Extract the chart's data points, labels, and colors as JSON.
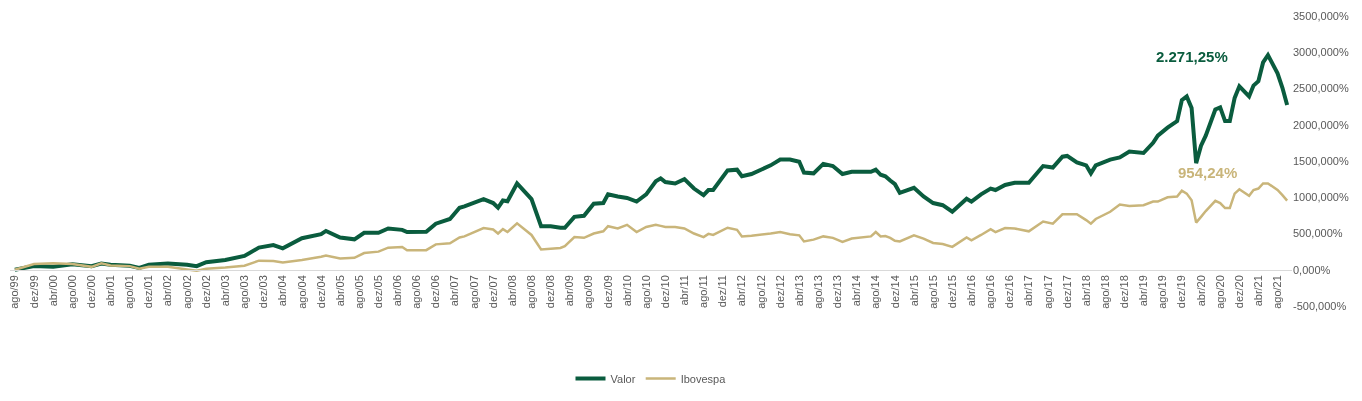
{
  "chart_data": {
    "type": "line",
    "x": [
      "1999-08",
      "1999-12",
      "2000-04",
      "2000-08",
      "2000-12",
      "2001-02",
      "2001-04",
      "2001-08",
      "2001-10",
      "2001-12",
      "2002-04",
      "2002-08",
      "2002-10",
      "2002-12",
      "2003-04",
      "2003-08",
      "2003-11",
      "2004-02",
      "2004-04",
      "2004-08",
      "2004-12",
      "2005-01",
      "2005-04",
      "2005-07",
      "2005-09",
      "2005-12",
      "2006-02",
      "2006-05",
      "2006-06",
      "2006-10",
      "2006-12",
      "2007-03",
      "2007-05",
      "2007-06",
      "2007-10",
      "2007-12",
      "2008-01",
      "2008-02",
      "2008-03",
      "2008-05",
      "2008-08",
      "2008-10",
      "2008-12",
      "2009-02",
      "2009-03",
      "2009-05",
      "2009-07",
      "2009-09",
      "2009-11",
      "2009-12",
      "2010-02",
      "2010-04",
      "2010-06",
      "2010-08",
      "2010-10",
      "2010-11",
      "2010-12",
      "2011-02",
      "2011-04",
      "2011-06",
      "2011-08",
      "2011-09",
      "2011-10",
      "2012-01",
      "2012-03",
      "2012-04",
      "2012-06",
      "2012-10",
      "2012-12",
      "2013-02",
      "2013-04",
      "2013-05",
      "2013-07",
      "2013-09",
      "2013-11",
      "2014-01",
      "2014-03",
      "2014-07",
      "2014-08",
      "2014-09",
      "2014-10",
      "2014-11",
      "2014-12",
      "2015-01",
      "2015-04",
      "2015-06",
      "2015-08",
      "2015-10",
      "2015-12",
      "2016-03",
      "2016-04",
      "2016-06",
      "2016-08",
      "2016-09",
      "2016-11",
      "2017-01",
      "2017-04",
      "2017-07",
      "2017-09",
      "2017-11",
      "2017-12",
      "2018-02",
      "2018-04",
      "2018-05",
      "2018-06",
      "2018-09",
      "2018-11",
      "2019-01",
      "2019-04",
      "2019-06",
      "2019-07",
      "2019-09",
      "2019-11",
      "2019-12",
      "2020-01",
      "2020-02",
      "2020-03",
      "2020-04",
      "2020-05",
      "2020-07",
      "2020-08",
      "2020-09",
      "2020-10",
      "2020-11",
      "2020-12",
      "2021-02",
      "2021-03",
      "2021-04",
      "2021-05",
      "2021-06",
      "2021-08",
      "2021-09",
      "2021-10"
    ],
    "series": [
      {
        "name": "Valor",
        "color": "#0a5c3e",
        "values": [
          0,
          50,
          40,
          75,
          50,
          85,
          70,
          55,
          25,
          70,
          85,
          70,
          50,
          105,
          135,
          190,
          305,
          340,
          295,
          435,
          490,
          535,
          445,
          420,
          510,
          510,
          570,
          550,
          520,
          525,
          635,
          700,
          855,
          875,
          975,
          920,
          855,
          955,
          945,
          1190,
          975,
          600,
          600,
          580,
          580,
          730,
          745,
          910,
          920,
          1040,
          1010,
          990,
          940,
          1040,
          1220,
          1260,
          1210,
          1190,
          1250,
          1120,
          1030,
          1100,
          1100,
          1370,
          1380,
          1290,
          1320,
          1440,
          1520,
          1520,
          1490,
          1340,
          1330,
          1460,
          1430,
          1320,
          1350,
          1350,
          1380,
          1310,
          1290,
          1230,
          1180,
          1060,
          1130,
          1010,
          920,
          890,
          800,
          980,
          940,
          1040,
          1120,
          1100,
          1170,
          1200,
          1200,
          1430,
          1410,
          1560,
          1570,
          1480,
          1440,
          1330,
          1440,
          1520,
          1550,
          1630,
          1610,
          1750,
          1850,
          1960,
          2050,
          2340,
          2390,
          2230,
          1470,
          1710,
          1850,
          2210,
          2240,
          2050,
          2050,
          2370,
          2530,
          2390,
          2540,
          2600,
          2860,
          2960,
          2710,
          2510,
          2271.25
        ]
      },
      {
        "name": "Ibovespa",
        "color": "#c9b57a",
        "values": [
          0,
          80,
          90,
          80,
          40,
          90,
          60,
          50,
          15,
          40,
          40,
          5,
          -15,
          15,
          30,
          55,
          125,
          120,
          100,
          135,
          180,
          195,
          155,
          165,
          230,
          250,
          305,
          315,
          270,
          270,
          350,
          365,
          445,
          460,
          575,
          555,
          500,
          560,
          520,
          640,
          480,
          280,
          290,
          300,
          325,
          450,
          440,
          500,
          530,
          600,
          570,
          620,
          520,
          590,
          620,
          605,
          590,
          590,
          570,
          500,
          450,
          495,
          480,
          580,
          550,
          460,
          470,
          500,
          520,
          490,
          475,
          390,
          415,
          460,
          440,
          385,
          430,
          460,
          520,
          460,
          465,
          440,
          400,
          390,
          475,
          430,
          370,
          355,
          315,
          445,
          405,
          480,
          560,
          520,
          575,
          570,
          530,
          665,
          635,
          765,
          765,
          765,
          685,
          635,
          700,
          800,
          900,
          880,
          890,
          940,
          940,
          1000,
          1010,
          1090,
          1050,
          960,
          650,
          730,
          810,
          950,
          920,
          850,
          850,
          1050,
          1110,
          1020,
          1100,
          1120,
          1190,
          1190,
          1100,
          1030,
          954.24
        ]
      }
    ],
    "annotations": [
      "2.271,25%",
      "954,24%"
    ],
    "xlim": [
      "1999-07",
      "2021-11"
    ],
    "xticks": [
      {
        "value": "1999-08",
        "label": "ago/99"
      },
      {
        "value": "1999-12",
        "label": "dez/99"
      },
      {
        "value": "2000-04",
        "label": "abr/00"
      },
      {
        "value": "2000-08",
        "label": "ago/00"
      },
      {
        "value": "2000-12",
        "label": "dez/00"
      },
      {
        "value": "2001-04",
        "label": "abr/01"
      },
      {
        "value": "2001-08",
        "label": "ago/01"
      },
      {
        "value": "2001-12",
        "label": "dez/01"
      },
      {
        "value": "2002-04",
        "label": "abr/02"
      },
      {
        "value": "2002-08",
        "label": "ago/02"
      },
      {
        "value": "2002-12",
        "label": "dez/02"
      },
      {
        "value": "2003-04",
        "label": "abr/03"
      },
      {
        "value": "2003-08",
        "label": "ago/03"
      },
      {
        "value": "2003-12",
        "label": "dez/03"
      },
      {
        "value": "2004-04",
        "label": "abr/04"
      },
      {
        "value": "2004-08",
        "label": "ago/04"
      },
      {
        "value": "2004-12",
        "label": "dez/04"
      },
      {
        "value": "2005-04",
        "label": "abr/05"
      },
      {
        "value": "2005-08",
        "label": "ago/05"
      },
      {
        "value": "2005-12",
        "label": "dez/05"
      },
      {
        "value": "2006-04",
        "label": "abr/06"
      },
      {
        "value": "2006-08",
        "label": "ago/06"
      },
      {
        "value": "2006-12",
        "label": "dez/06"
      },
      {
        "value": "2007-04",
        "label": "abr/07"
      },
      {
        "value": "2007-08",
        "label": "ago/07"
      },
      {
        "value": "2007-12",
        "label": "dez/07"
      },
      {
        "value": "2008-04",
        "label": "abr/08"
      },
      {
        "value": "2008-08",
        "label": "ago/08"
      },
      {
        "value": "2008-12",
        "label": "dez/08"
      },
      {
        "value": "2009-04",
        "label": "abr/09"
      },
      {
        "value": "2009-08",
        "label": "ago/09"
      },
      {
        "value": "2009-12",
        "label": "dez/09"
      },
      {
        "value": "2010-04",
        "label": "abr/10"
      },
      {
        "value": "2010-08",
        "label": "ago/10"
      },
      {
        "value": "2010-12",
        "label": "dez/10"
      },
      {
        "value": "2011-04",
        "label": "abr/11"
      },
      {
        "value": "2011-08",
        "label": "ago/11"
      },
      {
        "value": "2011-12",
        "label": "dez/11"
      },
      {
        "value": "2012-04",
        "label": "abr/12"
      },
      {
        "value": "2012-08",
        "label": "ago/12"
      },
      {
        "value": "2012-12",
        "label": "dez/12"
      },
      {
        "value": "2013-04",
        "label": "abr/13"
      },
      {
        "value": "2013-08",
        "label": "ago/13"
      },
      {
        "value": "2013-12",
        "label": "dez/13"
      },
      {
        "value": "2014-04",
        "label": "abr/14"
      },
      {
        "value": "2014-08",
        "label": "ago/14"
      },
      {
        "value": "2014-12",
        "label": "dez/14"
      },
      {
        "value": "2015-04",
        "label": "abr/15"
      },
      {
        "value": "2015-08",
        "label": "ago/15"
      },
      {
        "value": "2015-12",
        "label": "dez/15"
      },
      {
        "value": "2016-04",
        "label": "abr/16"
      },
      {
        "value": "2016-08",
        "label": "ago/16"
      },
      {
        "value": "2016-12",
        "label": "dez/16"
      },
      {
        "value": "2017-04",
        "label": "abr/17"
      },
      {
        "value": "2017-08",
        "label": "ago/17"
      },
      {
        "value": "2017-12",
        "label": "dez/17"
      },
      {
        "value": "2018-04",
        "label": "abr/18"
      },
      {
        "value": "2018-08",
        "label": "ago/18"
      },
      {
        "value": "2018-12",
        "label": "dez/18"
      },
      {
        "value": "2019-04",
        "label": "abr/19"
      },
      {
        "value": "2019-08",
        "label": "ago/19"
      },
      {
        "value": "2019-12",
        "label": "dez/19"
      },
      {
        "value": "2020-04",
        "label": "abr/20"
      },
      {
        "value": "2020-08",
        "label": "ago/20"
      },
      {
        "value": "2020-12",
        "label": "dez/20"
      },
      {
        "value": "2021-04",
        "label": "abr/21"
      },
      {
        "value": "2021-08",
        "label": "ago/21"
      }
    ],
    "ylim": [
      -500,
      3500
    ],
    "yticks": [
      {
        "value": -500,
        "label": "-500,000%"
      },
      {
        "value": 0,
        "label": "0,000%"
      },
      {
        "value": 500,
        "label": "500,000%"
      },
      {
        "value": 1000,
        "label": "1000,000%"
      },
      {
        "value": 1500,
        "label": "1500,000%"
      },
      {
        "value": 2000,
        "label": "2000,000%"
      },
      {
        "value": 2500,
        "label": "2500,000%"
      },
      {
        "value": 3000,
        "label": "3000,000%"
      },
      {
        "value": 3500,
        "label": "3500,000%"
      }
    ],
    "legend": "bottom",
    "line_style": "solid"
  }
}
